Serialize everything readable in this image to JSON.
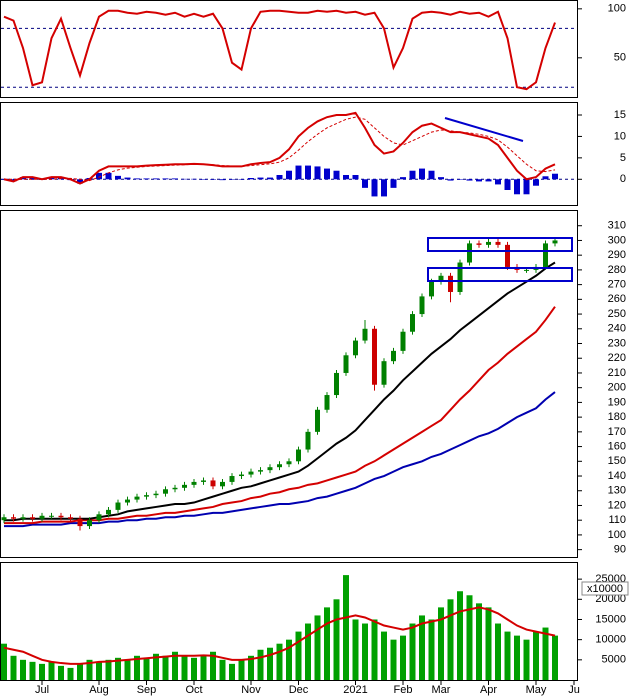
{
  "chart_data": [
    {
      "type": "line",
      "ylim": [
        10,
        108
      ],
      "yticks": [
        100,
        50
      ],
      "reference_lines": [
        80,
        20
      ],
      "series": [
        {
          "type": "line",
          "color": "#d40000",
          "values": [
            92,
            88,
            60,
            22,
            25,
            70,
            90,
            60,
            32,
            65,
            92,
            98,
            98,
            96,
            95,
            97,
            96,
            94,
            96,
            92,
            95,
            92,
            95,
            80,
            45,
            38,
            80,
            97,
            98,
            98,
            97,
            96,
            96,
            98,
            97,
            98,
            96,
            97,
            94,
            96,
            80,
            40,
            60,
            90,
            96,
            97,
            96,
            94,
            97,
            95,
            96,
            92,
            97,
            70,
            20,
            18,
            25,
            60,
            86,
            null,
            null
          ]
        }
      ]
    },
    {
      "type": "combo",
      "ylim": [
        -6,
        17.8
      ],
      "yticks": [
        15,
        10,
        5,
        0
      ],
      "reference_lines": [
        0
      ],
      "series": [
        {
          "type": "bar",
          "color": "#0000cc",
          "values": [
            0,
            -0.5,
            0.5,
            0.5,
            0,
            0.5,
            0.3,
            -0.2,
            -1,
            0.3,
            1.5,
            1.5,
            0.8,
            0.4,
            0.2,
            0.2,
            0.2,
            0.2,
            0.2,
            0.1,
            0.1,
            0,
            -0.1,
            -0.2,
            -0.1,
            0,
            0.3,
            0.4,
            0.4,
            1,
            2,
            3.2,
            3.2,
            3,
            2.5,
            2,
            1,
            1,
            -2,
            -4,
            -4,
            -2,
            0.5,
            2,
            2.5,
            2,
            0.5,
            -0.3,
            0,
            -0.3,
            -0.5,
            -0.5,
            -1.2,
            -2.5,
            -3.5,
            -3.5,
            -1.5,
            0.7,
            1.3,
            null,
            null
          ]
        },
        {
          "type": "line",
          "color": "#d40000",
          "dashed": true,
          "values": [
            0,
            0,
            0,
            0,
            0,
            0,
            0.2,
            0.2,
            0,
            -0.3,
            0.5,
            1.5,
            2.2,
            2.6,
            2.8,
            3,
            3.1,
            3.2,
            3.3,
            3.4,
            3.5,
            3.5,
            3.4,
            3.2,
            3.1,
            3,
            3.2,
            3.4,
            3.6,
            4,
            5,
            6.8,
            8.8,
            10.5,
            12,
            13,
            14,
            14.5,
            14,
            12,
            10,
            8.5,
            8,
            9,
            10,
            11,
            11.5,
            11.3,
            11,
            10.8,
            10.5,
            10,
            9.2,
            7.5,
            5.5,
            3.5,
            2,
            1.8,
            2.2,
            null,
            null
          ]
        },
        {
          "type": "line",
          "color": "#d40000",
          "values": [
            0,
            -0.5,
            0.5,
            0.5,
            0,
            0.5,
            0.5,
            0,
            -1,
            0,
            2,
            3,
            3,
            3,
            3,
            3.2,
            3.3,
            3.4,
            3.5,
            3.5,
            3.6,
            3.5,
            3.3,
            3,
            3,
            3,
            3.5,
            3.8,
            4,
            5,
            7,
            10,
            12,
            13.5,
            14.5,
            15,
            15,
            15.5,
            12,
            8,
            6,
            6.5,
            8.5,
            11,
            12.5,
            13,
            12,
            11,
            11,
            10.5,
            10,
            9.5,
            8,
            5,
            2,
            0,
            0.5,
            2.5,
            3.5,
            null,
            null
          ]
        }
      ]
    },
    {
      "type": "candlestick",
      "ylim": [
        85,
        320
      ],
      "yticks": [
        90,
        100,
        110,
        120,
        130,
        140,
        150,
        160,
        170,
        180,
        190,
        200,
        210,
        220,
        230,
        240,
        250,
        260,
        270,
        280,
        290,
        300,
        310
      ],
      "up_color": "#008000",
      "down_color": "#cc0000",
      "open": [
        110,
        112,
        111,
        112,
        111,
        113,
        113,
        112,
        111,
        106,
        110,
        114,
        117,
        122,
        124,
        126,
        127,
        128,
        131,
        132,
        134,
        136,
        137,
        133,
        136,
        140,
        141,
        143,
        144,
        146,
        148,
        150,
        158,
        170,
        185,
        195,
        210,
        222,
        232,
        240,
        202,
        218,
        225,
        238,
        250,
        262,
        272,
        276,
        265,
        285,
        298,
        297,
        299,
        297,
        282,
        280,
        280,
        282,
        298,
        null,
        null
      ],
      "high": [
        114,
        114,
        114,
        114,
        115,
        115,
        115,
        114,
        113,
        112,
        116,
        119,
        124,
        126,
        128,
        129,
        130,
        133,
        134,
        136,
        138,
        139,
        139,
        138,
        142,
        143,
        145,
        146,
        148,
        150,
        152,
        160,
        172,
        187,
        197,
        212,
        224,
        234,
        246,
        242,
        220,
        227,
        240,
        252,
        264,
        274,
        278,
        278,
        287,
        300,
        300,
        301,
        301,
        299,
        284,
        282,
        284,
        300,
        302,
        null,
        null
      ],
      "low": [
        108,
        109,
        109,
        109,
        109,
        111,
        110,
        109,
        103,
        104,
        108,
        112,
        115,
        120,
        122,
        124,
        125,
        126,
        129,
        130,
        132,
        134,
        131,
        131,
        134,
        138,
        139,
        141,
        142,
        144,
        146,
        148,
        156,
        168,
        183,
        193,
        208,
        220,
        230,
        198,
        200,
        216,
        223,
        236,
        248,
        260,
        270,
        258,
        263,
        283,
        295,
        295,
        295,
        280,
        278,
        278,
        278,
        280,
        296,
        null,
        null
      ],
      "close": [
        112,
        111,
        112,
        111,
        113,
        113,
        112,
        111,
        106,
        110,
        114,
        117,
        122,
        124,
        126,
        127,
        128,
        131,
        132,
        134,
        136,
        137,
        133,
        136,
        140,
        141,
        143,
        144,
        146,
        148,
        150,
        158,
        170,
        185,
        195,
        210,
        222,
        232,
        240,
        202,
        218,
        225,
        238,
        250,
        262,
        272,
        276,
        265,
        285,
        298,
        297,
        299,
        297,
        282,
        280,
        280,
        282,
        298,
        300,
        null,
        null
      ],
      "series": [
        {
          "type": "line",
          "color": "#0000b0",
          "values": [
            106,
            106,
            106,
            107,
            107,
            107,
            107,
            108,
            108,
            108,
            108,
            109,
            109,
            110,
            110,
            111,
            111,
            112,
            112,
            113,
            113,
            114,
            115,
            115,
            116,
            117,
            118,
            119,
            120,
            121,
            121,
            122,
            123,
            125,
            126,
            128,
            130,
            132,
            135,
            138,
            140,
            143,
            146,
            148,
            150,
            153,
            155,
            158,
            161,
            164,
            167,
            169,
            172,
            176,
            180,
            183,
            186,
            192,
            197,
            null,
            null
          ]
        },
        {
          "type": "line",
          "color": "#d40000",
          "values": [
            108,
            108,
            108,
            108,
            109,
            109,
            109,
            109,
            110,
            110,
            110,
            111,
            111,
            112,
            113,
            113,
            114,
            115,
            115,
            116,
            117,
            118,
            119,
            121,
            122,
            123,
            125,
            126,
            128,
            129,
            131,
            132,
            134,
            135,
            137,
            139,
            141,
            143,
            147,
            150,
            154,
            158,
            162,
            166,
            170,
            174,
            178,
            185,
            192,
            198,
            205,
            212,
            217,
            223,
            228,
            233,
            238,
            246,
            255,
            null,
            null
          ]
        },
        {
          "type": "line",
          "color": "#000000",
          "values": [
            110,
            110,
            111,
            111,
            111,
            111,
            111,
            111,
            111,
            111,
            112,
            113,
            114,
            116,
            117,
            118,
            119,
            120,
            121,
            121,
            122,
            124,
            126,
            128,
            130,
            132,
            133,
            135,
            137,
            139,
            141,
            143,
            147,
            152,
            157,
            162,
            166,
            171,
            178,
            185,
            192,
            198,
            205,
            211,
            217,
            223,
            228,
            233,
            239,
            244,
            249,
            254,
            259,
            264,
            268,
            272,
            276,
            281,
            285,
            null,
            null
          ]
        }
      ]
    },
    {
      "type": "combo",
      "ylim": [
        0,
        29000
      ],
      "yticks": [
        5000,
        10000,
        15000,
        20000,
        25000
      ],
      "unit_label": "x10000",
      "categories": [
        null,
        null,
        null,
        null,
        "Jul",
        null,
        null,
        null,
        null,
        null,
        "Aug",
        null,
        null,
        null,
        null,
        "Sep",
        null,
        null,
        null,
        null,
        "Oct",
        null,
        null,
        null,
        null,
        null,
        "Nov",
        null,
        null,
        null,
        null,
        "Dec",
        null,
        null,
        null,
        null,
        null,
        "2021",
        null,
        null,
        null,
        null,
        "Feb",
        null,
        null,
        null,
        "Mar",
        null,
        null,
        null,
        null,
        "Apr",
        null,
        null,
        null,
        null,
        "May",
        null,
        null,
        null,
        "Ju"
      ],
      "series": [
        {
          "type": "bar",
          "color": "#00a000",
          "values": [
            9000,
            6000,
            5000,
            4500,
            4000,
            4500,
            3500,
            3000,
            4000,
            5000,
            4500,
            5000,
            5500,
            5000,
            6000,
            5500,
            6500,
            6000,
            7000,
            6000,
            5500,
            6000,
            7000,
            5000,
            4000,
            5000,
            6000,
            7500,
            8000,
            9000,
            10000,
            12000,
            14000,
            16000,
            18000,
            20000,
            26000,
            15000,
            14000,
            15000,
            12000,
            10000,
            11000,
            14000,
            16000,
            15000,
            18000,
            20000,
            22000,
            21000,
            19000,
            18000,
            14000,
            12000,
            11000,
            10000,
            12000,
            13000,
            11000,
            null,
            null
          ]
        },
        {
          "type": "line",
          "color": "#d40000",
          "values": [
            8000,
            7500,
            7000,
            6000,
            5000,
            4500,
            4200,
            4000,
            4000,
            4200,
            4500,
            4600,
            4800,
            5000,
            5200,
            5400,
            5600,
            5800,
            6000,
            6000,
            6000,
            6100,
            6000,
            5500,
            5000,
            5000,
            5200,
            5600,
            6200,
            7000,
            8000,
            9500,
            11000,
            12500,
            14000,
            15000,
            15500,
            16000,
            15500,
            14500,
            13500,
            13000,
            12500,
            13000,
            14000,
            14500,
            15000,
            16000,
            17000,
            17500,
            18000,
            17500,
            16500,
            15000,
            13500,
            12500,
            12000,
            11500,
            11000,
            null,
            null
          ]
        }
      ]
    }
  ]
}
